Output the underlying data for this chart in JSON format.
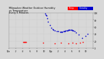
{
  "title": "Milwaukee Weather Outdoor Humidity",
  "subtitle": "vs Temperature",
  "subtitle2": "Every 5 Minutes",
  "bg_color": "#d8d8d8",
  "plot_bg": "#d8d8d8",
  "blue_x": [
    0.43,
    0.44,
    0.45,
    0.46,
    0.47,
    0.49,
    0.51,
    0.52,
    0.53,
    0.55,
    0.57,
    0.59,
    0.61,
    0.62,
    0.63,
    0.64,
    0.65,
    0.66,
    0.67,
    0.68,
    0.69,
    0.7,
    0.71,
    0.72,
    0.73,
    0.74,
    0.75,
    0.76,
    0.77,
    0.78,
    0.8,
    0.83,
    0.87,
    0.91,
    0.94
  ],
  "blue_y": [
    98,
    95,
    92,
    85,
    75,
    65,
    58,
    54,
    52,
    50,
    49,
    48,
    47,
    47,
    47,
    47,
    48,
    48,
    49,
    50,
    50,
    51,
    52,
    52,
    53,
    53,
    52,
    51,
    50,
    48,
    44,
    38,
    30,
    35,
    40
  ],
  "red_x": [
    0.17,
    0.18,
    0.19,
    0.2,
    0.21,
    0.41,
    0.55,
    0.62,
    0.71,
    0.76,
    0.8,
    0.85,
    0.88
  ],
  "red_y": [
    18,
    18,
    18,
    18,
    18,
    16,
    14,
    15,
    14,
    15,
    13,
    16,
    18
  ],
  "xlim": [
    0.0,
    1.0
  ],
  "ylim": [
    0,
    100
  ],
  "legend_red_label": "Temp",
  "legend_blue_label": "Humidity",
  "x_ticks": [
    0.0,
    0.083,
    0.167,
    0.25,
    0.333,
    0.417,
    0.5,
    0.583,
    0.667,
    0.75,
    0.833,
    0.917,
    1.0
  ],
  "x_tick_labels": [
    "12a",
    "2",
    "4",
    "6",
    "8",
    "10",
    "12p",
    "2",
    "4",
    "6",
    "8",
    "10",
    ""
  ],
  "y_ticks": [
    0,
    20,
    40,
    60,
    80,
    100
  ],
  "y_tick_labels": [
    "0",
    "20",
    "40",
    "60",
    "80",
    "100"
  ],
  "grid_color": "#aaaaaa",
  "dot_size": 1.5,
  "legend_bar_red": "#ff0000",
  "legend_bar_blue": "#0000cc",
  "text_color": "#000000"
}
